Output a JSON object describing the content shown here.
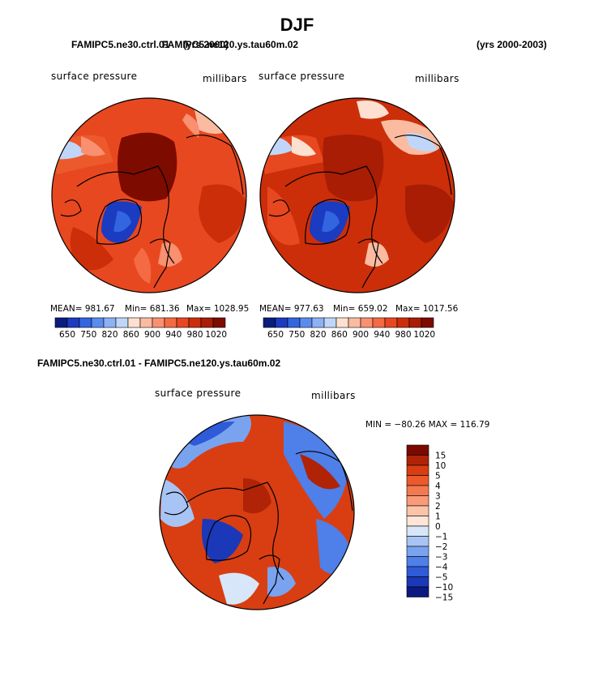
{
  "page": {
    "title": "DJF",
    "left_case": "FAMIPC5.ne30.ctrl.01",
    "overlap_text": "FAMIPC5.ne120.ys.tau60m.02",
    "years_left": "(yrs 2000)",
    "years_right": "(yrs 2000-2003)",
    "diff_title": "FAMIPC5.ne30.ctrl.01 - FAMIPC5.ne120.ys.tau60m.02"
  },
  "panels": [
    {
      "variable": "surface pressure",
      "units": "millibars",
      "mean_text": "MEAN= 981.67",
      "min_text": "Min= 681.36",
      "max_text": "Max= 1028.95"
    },
    {
      "variable": "surface pressure",
      "units": "millibars",
      "mean_text": "MEAN= 977.63",
      "min_text": "Min= 659.02",
      "max_text": "Max= 1017.56"
    },
    {
      "variable": "surface pressure",
      "units": "millibars",
      "minmax_text": "MIN = −80.26  MAX = 116.79"
    }
  ],
  "colors": {
    "abs_bar": [
      "#081d7e",
      "#1b3bc0",
      "#3265e0",
      "#5a8cf0",
      "#8cb2f4",
      "#c0d6f8",
      "#fde0cf",
      "#fbbba0",
      "#f99070",
      "#f46a42",
      "#e84820",
      "#cc2e0a",
      "#a81d04",
      "#7e0b00"
    ],
    "diff_bar": [
      "#0a1a80",
      "#1a38b8",
      "#2f5ad8",
      "#4f7fe8",
      "#7aa3ef",
      "#a8c4f4",
      "#d7e6f9",
      "#fde5d7",
      "#fbc4a8",
      "#f99a78",
      "#f4794f",
      "#ec5a2c",
      "#d83e12",
      "#b02306",
      "#7a0a00"
    ]
  },
  "chart_data": [
    {
      "type": "heatmap",
      "title": "surface pressure",
      "units": "millibars",
      "mean": 981.67,
      "min": 681.36,
      "max": 1028.95,
      "colorbar_levels": [
        650,
        750,
        820,
        860,
        900,
        940,
        980,
        1020
      ],
      "colorbar_labels": [
        "650",
        "750",
        "820",
        "860",
        "900",
        "940",
        "980",
        "1020"
      ]
    },
    {
      "type": "heatmap",
      "title": "surface pressure",
      "units": "millibars",
      "mean": 977.63,
      "min": 659.02,
      "max": 1017.56,
      "colorbar_levels": [
        650,
        750,
        820,
        860,
        900,
        940,
        980,
        1020
      ],
      "colorbar_labels": [
        "650",
        "750",
        "820",
        "860",
        "900",
        "940",
        "980",
        "1020"
      ]
    },
    {
      "type": "heatmap",
      "title": "surface pressure",
      "units": "millibars",
      "min": -80.26,
      "max": 116.79,
      "colorbar_levels": [
        15,
        10,
        5,
        4,
        3,
        2,
        1,
        0,
        -1,
        -2,
        -3,
        -4,
        -5,
        -10,
        -15
      ],
      "colorbar_labels": [
        "15",
        "10",
        "5",
        "4",
        "3",
        "2",
        "1",
        "0",
        "−1",
        "−2",
        "−3",
        "−4",
        "−5",
        "−10",
        "−15"
      ]
    }
  ]
}
